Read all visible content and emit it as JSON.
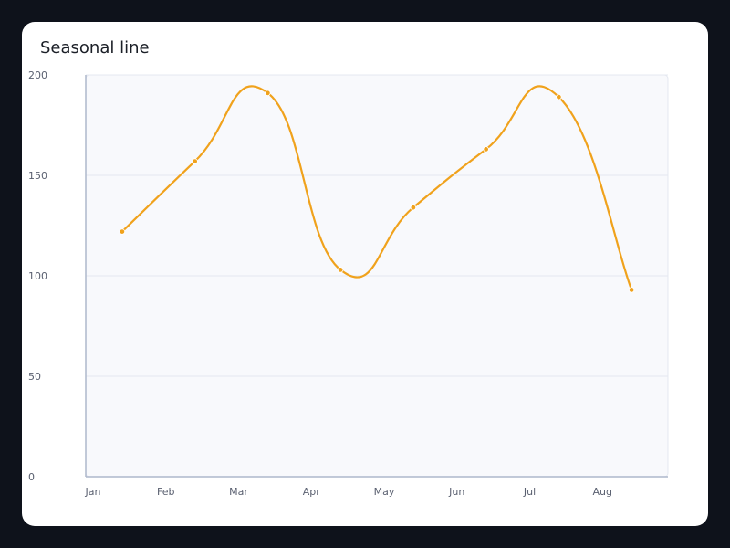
{
  "chart_data": {
    "type": "line",
    "title": "Seasonal line",
    "xlabel": "",
    "ylabel": "",
    "categories": [
      "Jan",
      "Feb",
      "Mar",
      "Apr",
      "May",
      "Jun",
      "Jul",
      "Aug"
    ],
    "series": [
      {
        "values": [
          122,
          157,
          191,
          103,
          134,
          163,
          189,
          93
        ],
        "color": "#f0a21c"
      }
    ],
    "ylim": [
      0,
      200
    ],
    "yticks": [
      0,
      50,
      100,
      150,
      200
    ],
    "grid": true,
    "smooth": true,
    "markers": true,
    "colors": {
      "plot_background": "#f8f9fc",
      "gridline": "#e4e8f0",
      "axis": "#aeb8cc"
    }
  }
}
